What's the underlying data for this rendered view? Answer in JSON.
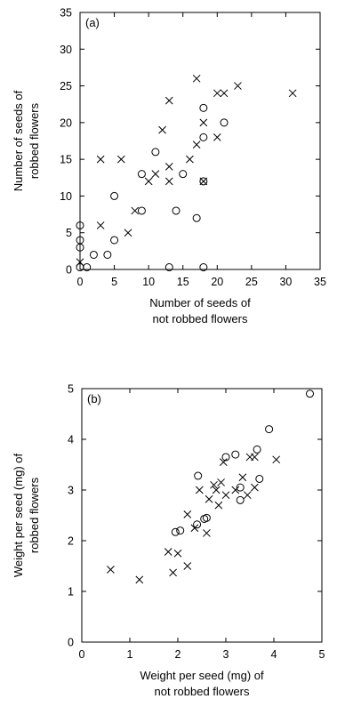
{
  "chart_data": [
    {
      "type": "scatter",
      "panel_label": "(a)",
      "xlabel": [
        "Number of seeds of",
        "not robbed flowers"
      ],
      "ylabel": [
        "Number of seeds of",
        "robbed flowers"
      ],
      "xlim": [
        0,
        35
      ],
      "ylim": [
        0,
        35
      ],
      "xticks": [
        0,
        5,
        10,
        15,
        20,
        25,
        30,
        35
      ],
      "yticks": [
        0,
        5,
        10,
        15,
        20,
        25,
        30,
        35
      ],
      "series": [
        {
          "marker": "circle",
          "points": [
            [
              0,
              6
            ],
            [
              0,
              4
            ],
            [
              0,
              3
            ],
            [
              0,
              0.3
            ],
            [
              1,
              0.3
            ],
            [
              2,
              2
            ],
            [
              4,
              2
            ],
            [
              5,
              10
            ],
            [
              5,
              4
            ],
            [
              9,
              8
            ],
            [
              9,
              13
            ],
            [
              11,
              16
            ],
            [
              13,
              0.3
            ],
            [
              14,
              8
            ],
            [
              15,
              13
            ],
            [
              17,
              7
            ],
            [
              18,
              22
            ],
            [
              18,
              18
            ],
            [
              18,
              12
            ],
            [
              18,
              0.3
            ],
            [
              21,
              20
            ]
          ]
        },
        {
          "marker": "cross",
          "points": [
            [
              0,
              1
            ],
            [
              3,
              15
            ],
            [
              3,
              6
            ],
            [
              6,
              15
            ],
            [
              7,
              5
            ],
            [
              8,
              8
            ],
            [
              10,
              12
            ],
            [
              11,
              13
            ],
            [
              12,
              19
            ],
            [
              13,
              23
            ],
            [
              13,
              14
            ],
            [
              13,
              12
            ],
            [
              16,
              15
            ],
            [
              17,
              17
            ],
            [
              17,
              26
            ],
            [
              18,
              20
            ],
            [
              18,
              12
            ],
            [
              20,
              24
            ],
            [
              20,
              18
            ],
            [
              21,
              24
            ],
            [
              23,
              25
            ],
            [
              31,
              24
            ]
          ]
        }
      ]
    },
    {
      "type": "scatter",
      "panel_label": "(b)",
      "xlabel": [
        "Weight per seed (mg) of",
        "not robbed flowers"
      ],
      "ylabel": [
        "Weight per seed (mg) of",
        "robbed flowers"
      ],
      "xlim": [
        0,
        5
      ],
      "ylim": [
        0,
        5
      ],
      "xticks": [
        0,
        1,
        2,
        3,
        4,
        5
      ],
      "yticks": [
        0,
        1,
        2,
        3,
        4,
        5
      ],
      "series": [
        {
          "marker": "circle",
          "points": [
            [
              1.95,
              2.17
            ],
            [
              2.05,
              2.2
            ],
            [
              2.4,
              2.32
            ],
            [
              2.42,
              3.28
            ],
            [
              2.55,
              2.43
            ],
            [
              2.6,
              2.45
            ],
            [
              3.0,
              3.65
            ],
            [
              3.2,
              3.7
            ],
            [
              3.3,
              2.8
            ],
            [
              3.3,
              3.05
            ],
            [
              3.65,
              3.8
            ],
            [
              3.7,
              3.22
            ],
            [
              3.9,
              4.2
            ],
            [
              4.75,
              4.9
            ]
          ]
        },
        {
          "marker": "cross",
          "points": [
            [
              0.6,
              1.43
            ],
            [
              1.2,
              1.23
            ],
            [
              1.8,
              1.78
            ],
            [
              1.9,
              1.37
            ],
            [
              2.0,
              1.75
            ],
            [
              2.2,
              1.5
            ],
            [
              2.2,
              2.52
            ],
            [
              2.35,
              2.25
            ],
            [
              2.45,
              3.0
            ],
            [
              2.6,
              2.15
            ],
            [
              2.65,
              2.82
            ],
            [
              2.75,
              3.1
            ],
            [
              2.85,
              2.7
            ],
            [
              2.9,
              3.15
            ],
            [
              2.95,
              3.55
            ],
            [
              3.0,
              2.9
            ],
            [
              3.2,
              3.0
            ],
            [
              3.35,
              3.25
            ],
            [
              3.45,
              2.9
            ],
            [
              3.5,
              3.65
            ],
            [
              3.6,
              3.65
            ],
            [
              3.6,
              3.05
            ],
            [
              4.05,
              3.6
            ],
            [
              2.8,
              3.0
            ]
          ]
        }
      ]
    }
  ]
}
